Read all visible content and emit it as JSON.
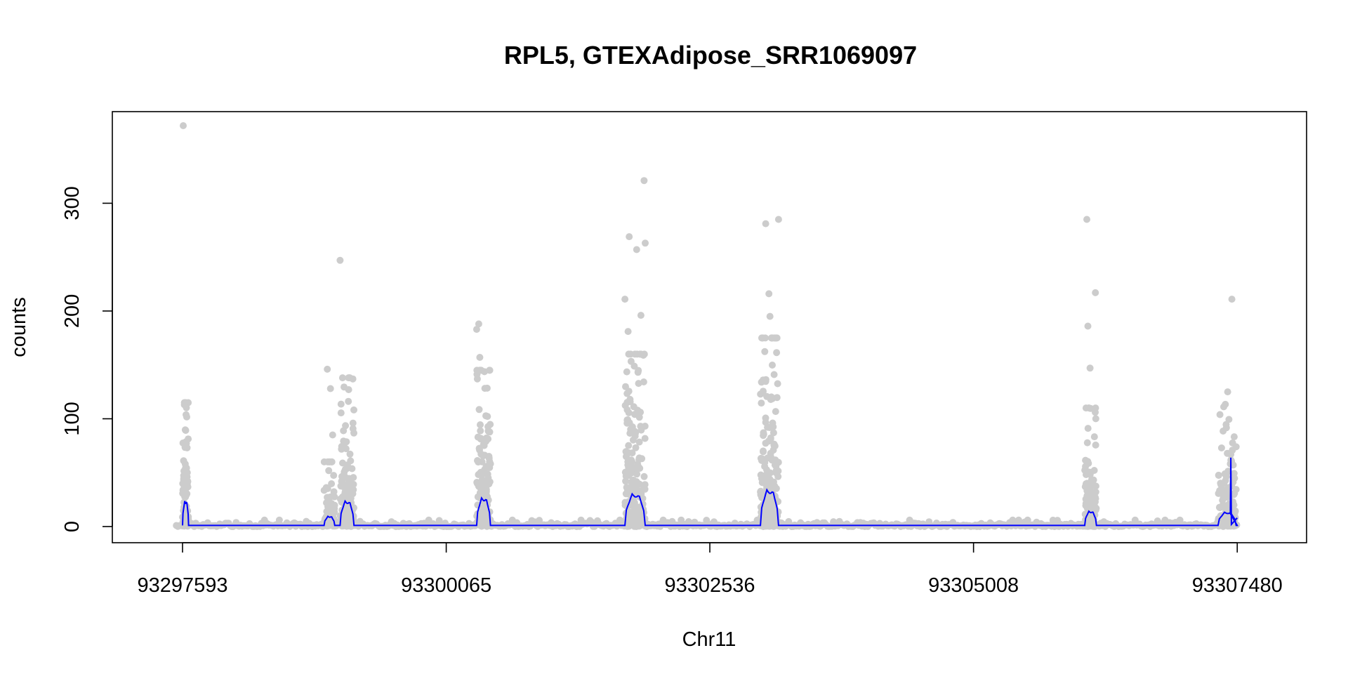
{
  "chart_data": {
    "type": "scatter",
    "title": "RPL5, GTEXAdipose_SRR1069097",
    "xlabel": "Chr11",
    "ylabel": "counts",
    "xlim": [
      93296935,
      93308130
    ],
    "ylim": [
      -15,
      385
    ],
    "x_ticks": [
      93297593,
      93300065,
      93302536,
      93305008,
      93307480
    ],
    "x_tick_labels": [
      "93297593",
      "93300065",
      "93302536",
      "93305008",
      "93307480"
    ],
    "y_ticks": [
      0,
      100,
      200,
      300
    ],
    "y_tick_labels": [
      "0",
      "100",
      "200",
      "300"
    ],
    "grid": false,
    "legend": "none",
    "point_color": "#cccccc",
    "line_color": "#0000ff",
    "baseline_value": 1,
    "exons": [
      {
        "start": 93297593,
        "end": 93297650,
        "peak": 25,
        "points": 70,
        "max": 115,
        "outliers": [
          [
            93297600,
            372
          ],
          [
            93297618,
            115
          ],
          [
            93297610,
            113
          ]
        ]
      },
      {
        "start": 93298920,
        "end": 93299020,
        "peak": 10,
        "points": 60,
        "max": 60,
        "outliers": [
          [
            93298950,
            146
          ],
          [
            93298980,
            128
          ],
          [
            93299000,
            85
          ]
        ]
      },
      {
        "start": 93299070,
        "end": 93299200,
        "peak": 25,
        "points": 110,
        "max": 138,
        "outliers": [
          [
            93299070,
            247
          ],
          [
            93299190,
            137
          ],
          [
            93299150,
            127
          ]
        ]
      },
      {
        "start": 93300350,
        "end": 93300480,
        "peak": 28,
        "points": 120,
        "max": 145,
        "outliers": [
          [
            93300370,
            188
          ],
          [
            93300350,
            183
          ],
          [
            93300380,
            157
          ]
        ]
      },
      {
        "start": 93301740,
        "end": 93301930,
        "peak": 32,
        "points": 180,
        "max": 160,
        "outliers": [
          [
            93301920,
            321
          ],
          [
            93301780,
            269
          ],
          [
            93301930,
            263
          ],
          [
            93301850,
            257
          ],
          [
            93301740,
            211
          ],
          [
            93301890,
            196
          ],
          [
            93301770,
            181
          ]
        ]
      },
      {
        "start": 93303010,
        "end": 93303180,
        "peak": 36,
        "points": 190,
        "max": 175,
        "outliers": [
          [
            93303180,
            285
          ],
          [
            93303060,
            281
          ],
          [
            93303090,
            216
          ],
          [
            93303100,
            195
          ],
          [
            93303020,
            134
          ]
        ]
      },
      {
        "start": 93306050,
        "end": 93306160,
        "peak": 15,
        "points": 90,
        "max": 110,
        "outliers": [
          [
            93306070,
            285
          ],
          [
            93306150,
            217
          ],
          [
            93306080,
            186
          ],
          [
            93306100,
            147
          ]
        ]
      },
      {
        "start": 93307300,
        "end": 93307470,
        "peak": 14,
        "points": 110,
        "max": 125,
        "outliers": [
          [
            93307430,
            211
          ],
          [
            93307470,
            74
          ],
          [
            93307420,
            67
          ]
        ]
      }
    ],
    "line_spike": [
      93307420,
      64
    ]
  }
}
